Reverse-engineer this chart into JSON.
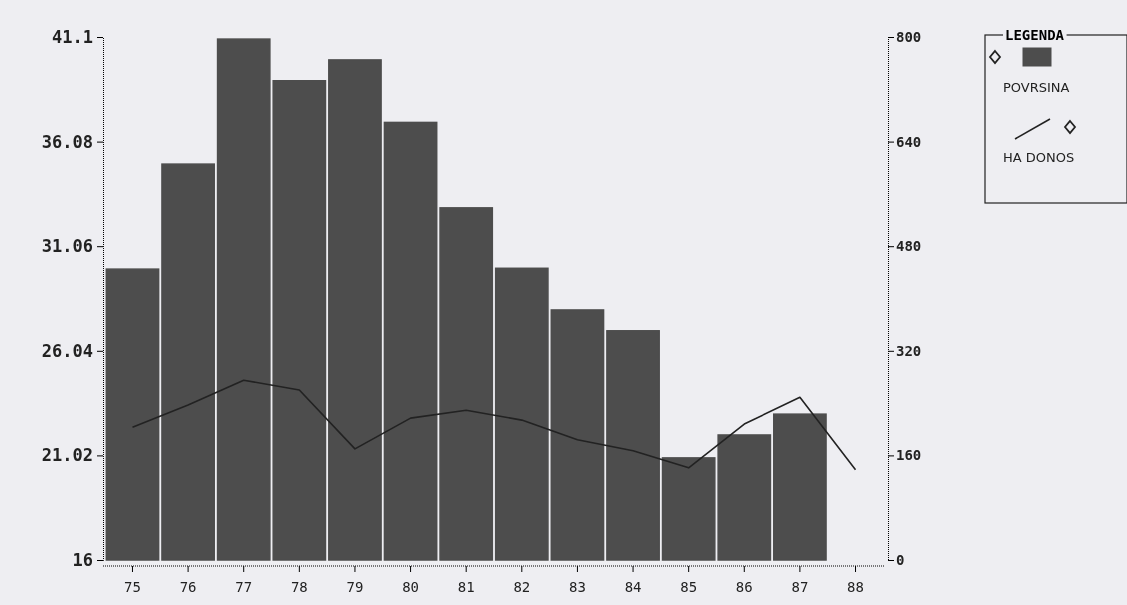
{
  "chart_data": {
    "type": "bar",
    "categories": [
      "75",
      "76",
      "77",
      "78",
      "79",
      "80",
      "81",
      "82",
      "83",
      "84",
      "85",
      "86",
      "87",
      "88"
    ],
    "series": [
      {
        "name": "POVRSINA",
        "color": "#4d4d4d",
        "values": [
          29.96,
          35.0,
          41.0,
          39.0,
          40.0,
          37.0,
          32.9,
          30.0,
          28.0,
          27.0,
          20.9,
          22.0,
          23.0,
          null
        ]
      },
      {
        "name": "HA DONOS",
        "type": "line",
        "axis": "y2",
        "color": "#222222",
        "values": [
          203,
          237,
          275,
          260,
          170,
          217,
          229,
          214,
          184,
          167,
          141,
          208,
          249,
          138
        ]
      }
    ],
    "ylim": [
      16,
      41.1
    ],
    "yticks": [
      16,
      21.02,
      26.04,
      31.06,
      36.08,
      41.1
    ],
    "y2lim": [
      0,
      800
    ],
    "y2ticks": [
      0,
      160,
      320,
      480,
      640,
      800
    ],
    "legend": "top right",
    "legend_title": "LEGENDA",
    "grid": false
  }
}
